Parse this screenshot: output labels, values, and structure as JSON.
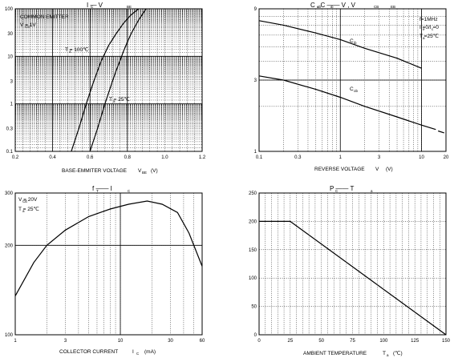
{
  "chart_data": [
    {
      "type": "line",
      "title": "I — V",
      "title_subscripts": [
        "C",
        "BE"
      ],
      "xlabel": "BASE-EMMITER VOLTAGE",
      "xlabel_tail": "V",
      "xlabel_sub": "BE",
      "xlabel_unit": "(V)",
      "xlim": [
        0.2,
        1.2
      ],
      "ylim": [
        0.1,
        100
      ],
      "yscale": "log",
      "xticks": [
        "0.2",
        "0.4",
        "0.6",
        "0.8",
        "1.0",
        "1.2"
      ],
      "yticks": [
        "100",
        "30",
        "10",
        "3",
        "1",
        "0.3",
        "0.1"
      ],
      "notes": [
        "COMMON EMITTER",
        "V      = 1V"
      ],
      "note_subscripts": [
        "CE"
      ],
      "series": [
        {
          "label": "T  = 100℃",
          "label_sub": "a",
          "x": [
            0.5,
            0.54,
            0.58,
            0.62,
            0.66,
            0.7,
            0.74,
            0.78,
            0.82,
            0.86
          ],
          "y": [
            0.1,
            0.3,
            1.0,
            3.0,
            8.0,
            17.0,
            30.0,
            50.0,
            75.0,
            100.0
          ]
        },
        {
          "label": "T  = 25℃",
          "label_sub": "a",
          "x": [
            0.6,
            0.64,
            0.68,
            0.72,
            0.74,
            0.76,
            0.78,
            0.8,
            0.82,
            0.86,
            0.9
          ],
          "y": [
            0.1,
            0.3,
            1.0,
            3.0,
            5.0,
            8.0,
            13.0,
            20.0,
            30.0,
            58.0,
            100.0
          ]
        }
      ]
    },
    {
      "type": "line",
      "title": "C   , C   —— V   , V",
      "title_subscripts": [
        "ob",
        "ib",
        "CB",
        "EB"
      ],
      "xlabel": "REVERSE VOLTAGE",
      "xlabel_tail": "V",
      "xlabel_unit": "(V)",
      "xlim": [
        0.1,
        20
      ],
      "xscale": "log",
      "ylim": [
        1,
        9
      ],
      "yscale": "log",
      "xticks": [
        "0.1",
        "0.3",
        "1",
        "3",
        "10",
        "20"
      ],
      "yticks": [
        "9",
        "3",
        "1"
      ],
      "notes": [
        "f=1MHz",
        "I =0/I =0",
        "T =25℃"
      ],
      "note_subscripts": [
        "e",
        "c",
        "a"
      ],
      "series": [
        {
          "label": "C",
          "label_sub": "ib",
          "x": [
            0.1,
            0.2,
            0.5,
            1,
            2,
            5,
            10
          ],
          "y": [
            7.5,
            7.0,
            6.2,
            5.6,
            4.9,
            4.2,
            3.6
          ]
        },
        {
          "label": "C",
          "label_sub": "ob",
          "x": [
            0.1,
            0.2,
            0.5,
            1,
            2,
            5,
            10,
            15
          ],
          "y": [
            3.2,
            3.0,
            2.6,
            2.3,
            2.0,
            1.7,
            1.5,
            1.4
          ]
        }
      ]
    },
    {
      "type": "line",
      "title": "f  —— I",
      "title_subscripts": [
        "T",
        "C"
      ],
      "xlabel": "COLLECTOR CURRENT",
      "xlabel_tail": "I",
      "xlabel_sub": "C",
      "xlabel_unit": "(mA)",
      "xlim": [
        1,
        60
      ],
      "xscale": "log",
      "ylim": [
        100,
        300
      ],
      "yscale": "log",
      "xticks": [
        "1",
        "3",
        "10",
        "30",
        "60"
      ],
      "yticks": [
        "300",
        "200",
        "100"
      ],
      "notes": [
        "V   = 20V",
        "T  = 25℃"
      ],
      "note_subscripts": [
        "CE",
        "a"
      ],
      "series": [
        {
          "x": [
            1,
            1.5,
            2,
            3,
            5,
            8,
            12,
            18,
            25,
            35,
            45,
            60
          ],
          "y": [
            135,
            175,
            200,
            225,
            250,
            265,
            275,
            282,
            275,
            258,
            220,
            170
          ]
        }
      ]
    },
    {
      "type": "line",
      "title": "P  —— T",
      "title_subscripts": [
        "C",
        "a"
      ],
      "xlabel": "AMBIENT TEMPERATURE",
      "xlabel_tail": "T",
      "xlabel_sub": "a",
      "xlabel_unit": "(℃)",
      "xlim": [
        0,
        150
      ],
      "ylim": [
        0,
        250
      ],
      "xticks": [
        "0",
        "25",
        "50",
        "75",
        "100",
        "125",
        "150"
      ],
      "yticks": [
        "250",
        "200",
        "150",
        "100",
        "50",
        "0"
      ],
      "series": [
        {
          "x": [
            0,
            25,
            150
          ],
          "y": [
            200,
            200,
            0
          ]
        }
      ]
    }
  ]
}
